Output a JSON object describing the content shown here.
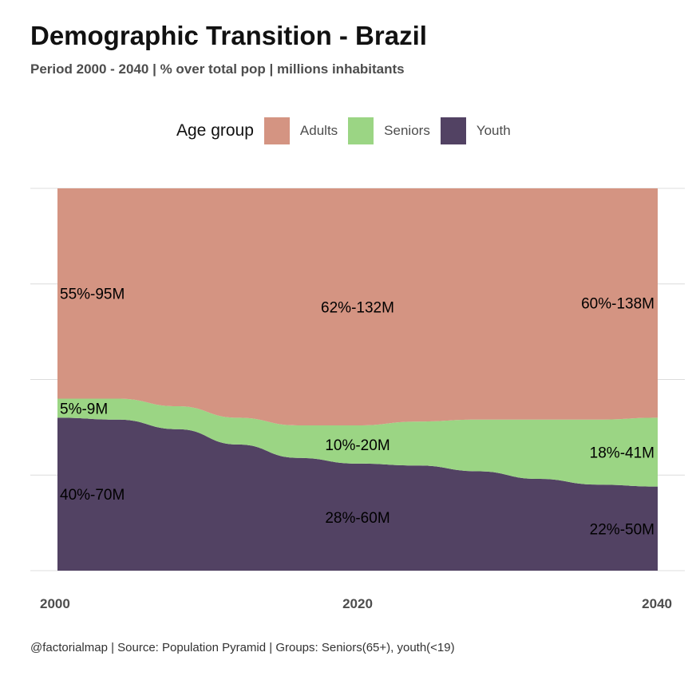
{
  "header": {
    "title": "Demographic Transition - Brazil",
    "subtitle": "Period 2000 - 2040 | % over total pop | millions inhabitants"
  },
  "legend": {
    "title": "Age group",
    "items": [
      {
        "label": "Adults",
        "color": "#d49482"
      },
      {
        "label": "Seniors",
        "color": "#9bd584"
      },
      {
        "label": "Youth",
        "color": "#524263"
      }
    ]
  },
  "caption": "@factorialmap | Source: Population Pyramid | Groups: Seniors(65+), youth(<19)",
  "chart_data": {
    "type": "area",
    "stacked": "percent",
    "x": [
      2000,
      2004,
      2008,
      2012,
      2016,
      2020,
      2024,
      2028,
      2032,
      2036,
      2040
    ],
    "xticks": [
      "2000",
      "2020",
      "2040"
    ],
    "xlim": [
      2000,
      2040
    ],
    "ylim": [
      0,
      1
    ],
    "grid": "horizontal",
    "legend_position": "top",
    "series": [
      {
        "name": "Youth",
        "color": "#524263",
        "values": [
          0.4,
          0.395,
          0.37,
          0.33,
          0.295,
          0.28,
          0.275,
          0.26,
          0.24,
          0.225,
          0.22
        ]
      },
      {
        "name": "Seniors",
        "color": "#9bd584",
        "values": [
          0.05,
          0.055,
          0.06,
          0.07,
          0.085,
          0.1,
          0.115,
          0.135,
          0.155,
          0.17,
          0.18
        ]
      },
      {
        "name": "Adults",
        "color": "#d49482",
        "values": [
          0.55,
          0.55,
          0.57,
          0.6,
          0.62,
          0.62,
          0.61,
          0.605,
          0.605,
          0.605,
          0.6
        ]
      }
    ],
    "labels": [
      {
        "series": "Adults",
        "x": 2000,
        "text": "55%-95M"
      },
      {
        "series": "Adults",
        "x": 2020,
        "text": "62%-132M"
      },
      {
        "series": "Adults",
        "x": 2040,
        "text": "60%-138M"
      },
      {
        "series": "Seniors",
        "x": 2000,
        "text": "5%-9M"
      },
      {
        "series": "Seniors",
        "x": 2020,
        "text": "10%-20M"
      },
      {
        "series": "Seniors",
        "x": 2040,
        "text": "18%-41M"
      },
      {
        "series": "Youth",
        "x": 2000,
        "text": "40%-70M"
      },
      {
        "series": "Youth",
        "x": 2020,
        "text": "28%-60M"
      },
      {
        "series": "Youth",
        "x": 2040,
        "text": "22%-50M"
      }
    ]
  }
}
